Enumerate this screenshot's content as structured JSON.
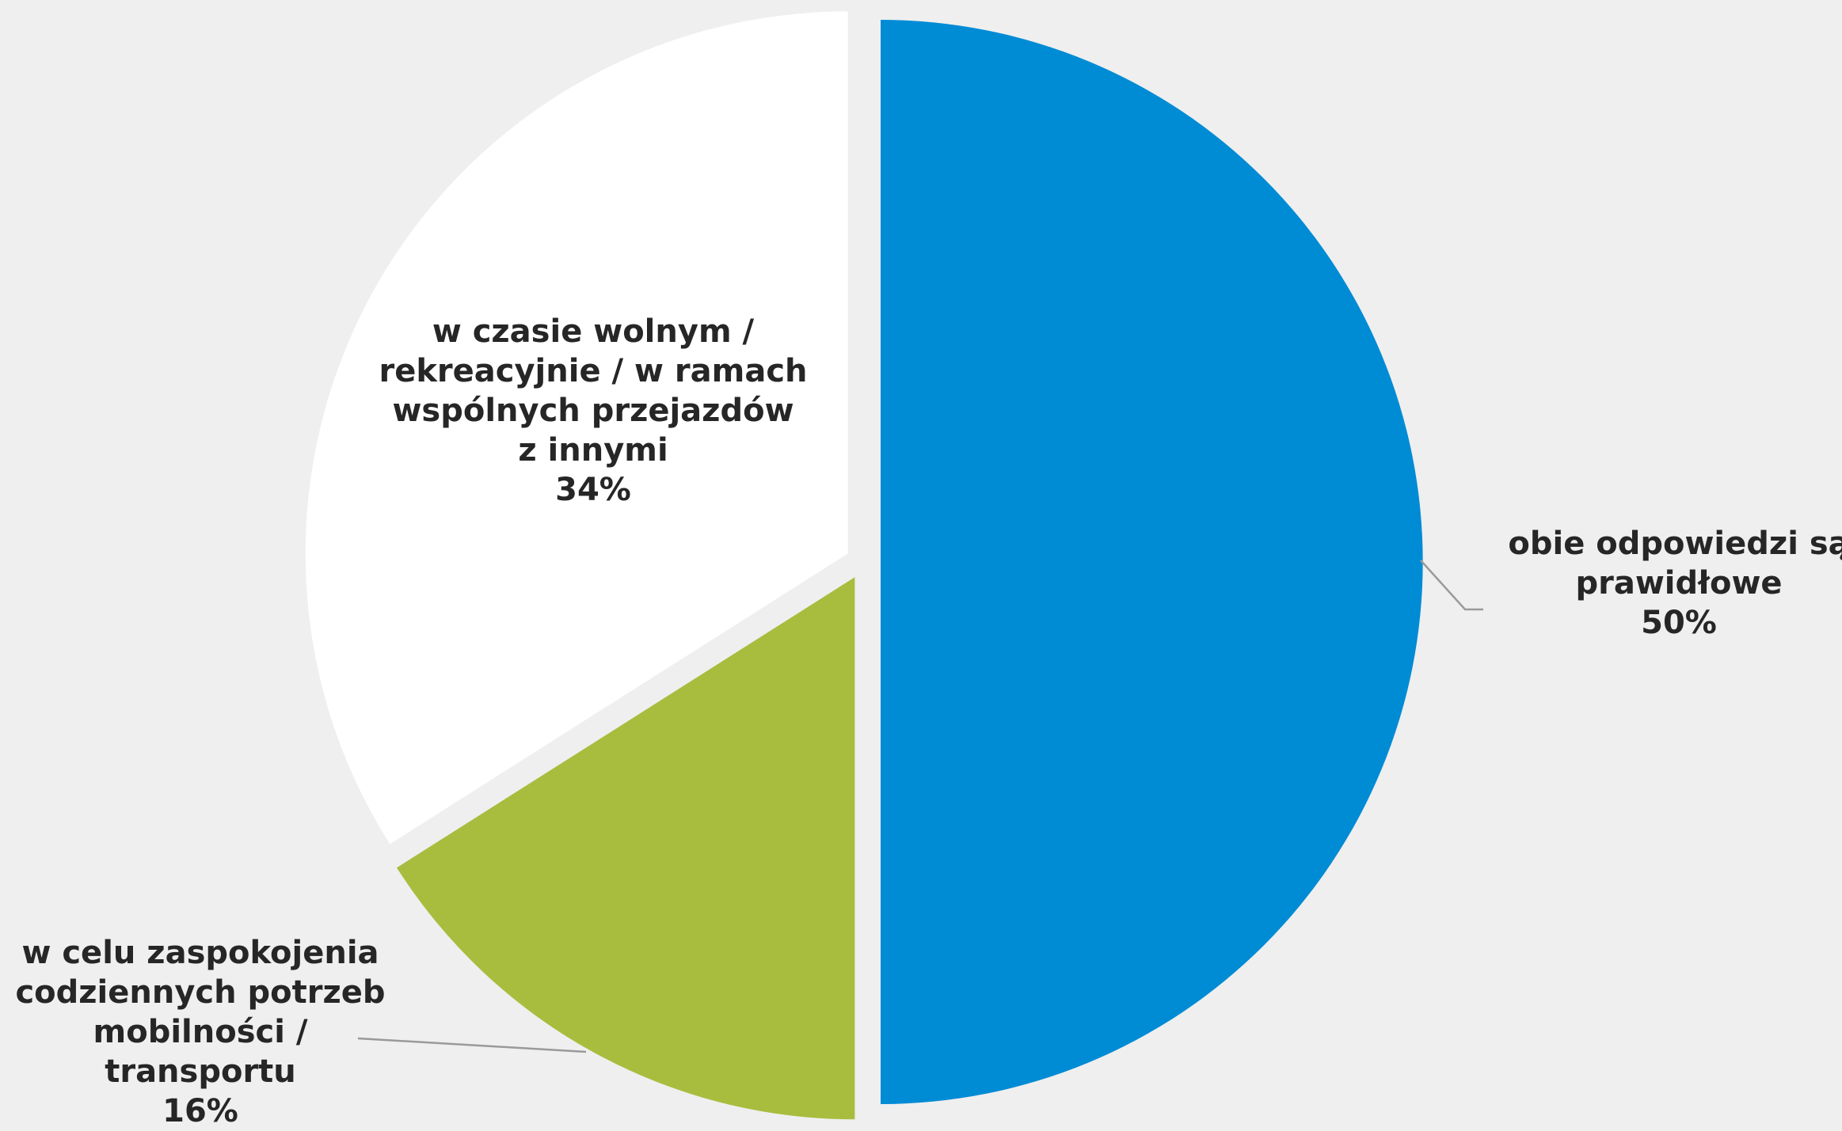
{
  "chart_data": {
    "type": "pie",
    "start_angle_deg": 0,
    "direction": "clockwise",
    "exploded": true,
    "slices": [
      {
        "label": [
          "obie odpowiedzi są",
          "prawidłowe"
        ],
        "value": 50,
        "value_label": "50%",
        "color": "#008bd5"
      },
      {
        "label": [
          "w celu zaspokojenia",
          "codziennych potrzeb",
          "mobilności /",
          "transportu"
        ],
        "value": 16,
        "value_label": "16%",
        "color": "#a8bd3e"
      },
      {
        "label": [
          "w czasie wolnym /",
          "rekreacyjnie / w ramach",
          "wspólnych przejazdów",
          "z innymi"
        ],
        "value": 34,
        "value_label": "34%",
        "color": "#ffffff"
      }
    ]
  }
}
